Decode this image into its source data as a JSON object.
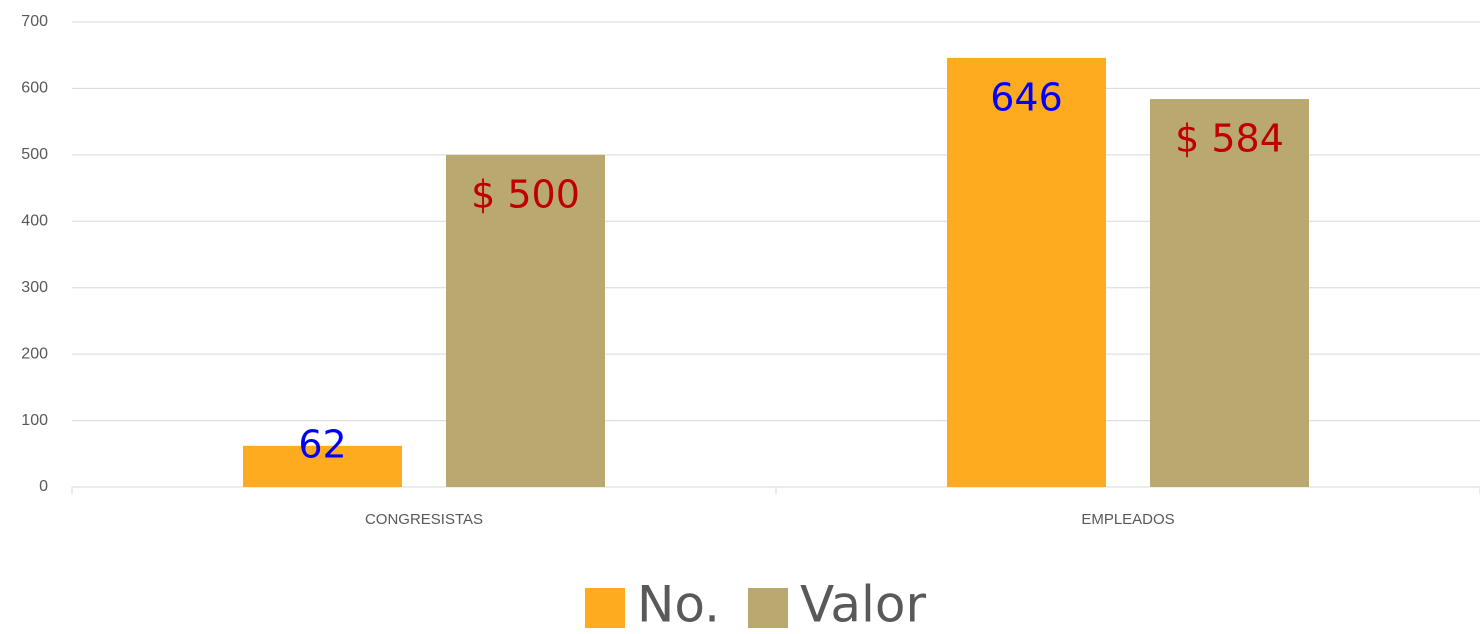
{
  "chart_data": {
    "type": "bar",
    "categories": [
      "CONGRESISTAS",
      "EMPLEADOS"
    ],
    "series": [
      {
        "name": "No.",
        "color": "#ffab1f",
        "label_color": "#0000ff",
        "values": [
          62,
          646
        ]
      },
      {
        "name": "Valor",
        "color": "#b9a970",
        "label_color": "#c00000",
        "values": [
          500,
          584
        ],
        "value_labels": [
          "$ 500",
          "$ 584"
        ]
      }
    ],
    "ylim": [
      0,
      700
    ],
    "yticks": [
      0,
      100,
      200,
      300,
      400,
      500,
      600,
      700
    ],
    "grid": true,
    "legend": "bottom"
  }
}
